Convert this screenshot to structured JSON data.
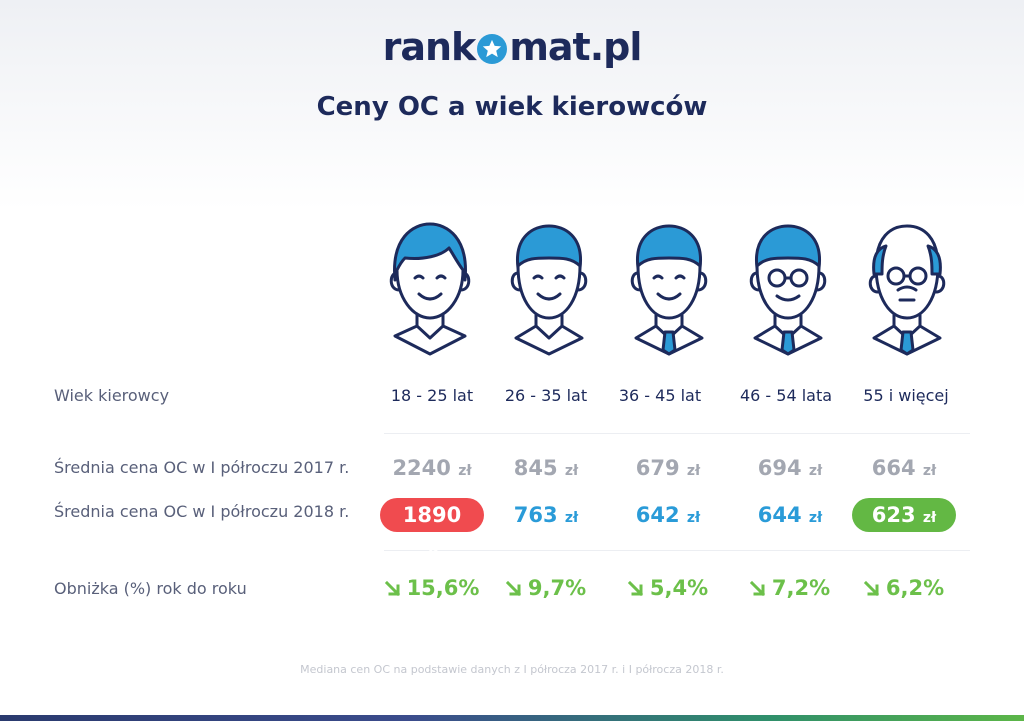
{
  "brand": {
    "logo_left": "rank",
    "logo_right": "mat.pl"
  },
  "title": "Ceny OC a wiek kierowców",
  "labels": {
    "age": "Wiek kierowcy",
    "price_2017": "Średnia cena OC w I półroczu 2017 r.",
    "price_2018": "Średnia cena OC w I półroczu 2018 r.",
    "drop": "Obniżka (%) rok do roku"
  },
  "currency": "zł",
  "columns": [
    {
      "age": "18 - 25 lat",
      "p2017": "2240",
      "p2018": "1890",
      "drop": "15,6%",
      "highlight": "red"
    },
    {
      "age": "26 - 35 lat",
      "p2017": "845",
      "p2018": "763",
      "drop": "9,7%",
      "highlight": "none"
    },
    {
      "age": "36 - 45 lat",
      "p2017": "679",
      "p2018": "642",
      "drop": "5,4%",
      "highlight": "none"
    },
    {
      "age": "46 - 54 lata",
      "p2017": "694",
      "p2018": "644",
      "drop": "7,2%",
      "highlight": "none"
    },
    {
      "age": "55 i więcej",
      "p2017": "664",
      "p2018": "623",
      "drop": "6,2%",
      "highlight": "green"
    }
  ],
  "footnote": "Mediana cen OC na podstawie danych z I półrocza 2017 r. i I półrocza 2018 r.",
  "colors": {
    "navy": "#1d2a5b",
    "blue": "#2a9bd8",
    "red": "#f04b4f",
    "green": "#63b844",
    "gray": "#a3a7b1"
  },
  "chart_data": {
    "type": "table",
    "title": "Ceny OC a wiek kierowców",
    "categories": [
      "18 - 25 lat",
      "26 - 35 lat",
      "36 - 45 lat",
      "46 - 54 lata",
      "55 i więcej"
    ],
    "series": [
      {
        "name": "Średnia cena OC w I półroczu 2017 r.",
        "values": [
          2240,
          845,
          679,
          694,
          664
        ]
      },
      {
        "name": "Średnia cena OC w I półroczu 2018 r.",
        "values": [
          1890,
          763,
          642,
          644,
          623
        ]
      },
      {
        "name": "Obniżka (%) rok do roku",
        "values": [
          15.6,
          9.7,
          5.4,
          7.2,
          6.2
        ]
      }
    ]
  }
}
